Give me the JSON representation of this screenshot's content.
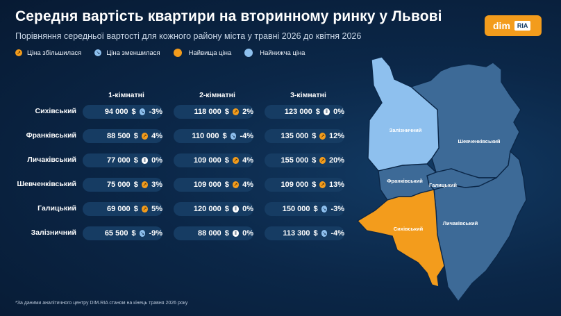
{
  "title": "Середня вартість квартири на вторинному ринку у Львові",
  "subtitle": "Порівняння середньої вартості для кожного району міста у травні 2026 до квітня 2026",
  "logo": {
    "dim": "dim",
    "ria": "RIA"
  },
  "legend": {
    "up": "Ціна збільшилася",
    "down": "Ціна зменшилася",
    "highest": "Найвища ціна",
    "lowest": "Найнижча ціна"
  },
  "columns": [
    "1-кімнатні",
    "2-кімнатні",
    "3-кімнатні"
  ],
  "rows": [
    {
      "district": "Сихівський",
      "cells": [
        {
          "price": "94 000",
          "currency": "$",
          "trend": "down",
          "pct": "-3%"
        },
        {
          "price": "118 000",
          "currency": "$",
          "trend": "up",
          "pct": "2%"
        },
        {
          "price": "123 000",
          "currency": "$",
          "trend": "same",
          "pct": "0%"
        }
      ]
    },
    {
      "district": "Франківський",
      "cells": [
        {
          "price": "88 500",
          "currency": "$",
          "trend": "up",
          "pct": "4%"
        },
        {
          "price": "110 000",
          "currency": "$",
          "trend": "down",
          "pct": "-4%"
        },
        {
          "price": "135 000",
          "currency": "$",
          "trend": "up",
          "pct": "12%"
        }
      ]
    },
    {
      "district": "Личаківський",
      "cells": [
        {
          "price": "77 000",
          "currency": "$",
          "trend": "same",
          "pct": "0%"
        },
        {
          "price": "109 000",
          "currency": "$",
          "trend": "up",
          "pct": "4%"
        },
        {
          "price": "155 000",
          "currency": "$",
          "trend": "up",
          "pct": "20%"
        }
      ]
    },
    {
      "district": "Шевченківський",
      "cells": [
        {
          "price": "75 000",
          "currency": "$",
          "trend": "up",
          "pct": "3%"
        },
        {
          "price": "109 000",
          "currency": "$",
          "trend": "up",
          "pct": "4%"
        },
        {
          "price": "109 000",
          "currency": "$",
          "trend": "up",
          "pct": "13%"
        }
      ]
    },
    {
      "district": "Галицький",
      "cells": [
        {
          "price": "69 000",
          "currency": "$",
          "trend": "up",
          "pct": "5%"
        },
        {
          "price": "120 000",
          "currency": "$",
          "trend": "same",
          "pct": "0%"
        },
        {
          "price": "150 000",
          "currency": "$",
          "trend": "down",
          "pct": "-3%"
        }
      ]
    },
    {
      "district": "Залізничний",
      "cells": [
        {
          "price": "65 500",
          "currency": "$",
          "trend": "down",
          "pct": "-9%"
        },
        {
          "price": "88 000",
          "currency": "$",
          "trend": "same",
          "pct": "0%"
        },
        {
          "price": "113 300",
          "currency": "$",
          "trend": "down",
          "pct": "-4%"
        }
      ]
    }
  ],
  "map": {
    "highest_district": "Сихівський",
    "lowest_district": "Залізничний",
    "labels": {
      "zaliznychnyi": "Залізничний",
      "shevchenkivskyi": "Шевченківський",
      "frankivskyi": "Франківський",
      "halytskyi": "Галицький",
      "sykhivskyi": "Сихівський",
      "lychakivskyi": "Личаківський"
    },
    "colors": {
      "highest": "#f39c1c",
      "lowest": "#8ec0ee",
      "default": "#3d6a97",
      "border": "#0b2748"
    }
  },
  "footnote": "*За даними аналітичного центру DIM.RIA станом на кінець травня 2026 року"
}
